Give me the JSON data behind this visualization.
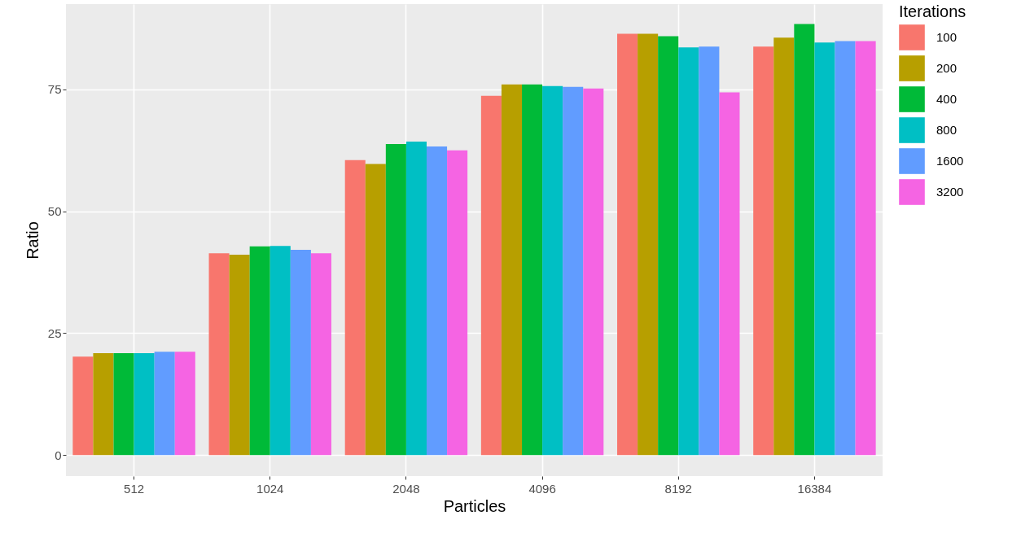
{
  "chart_data": {
    "type": "bar",
    "xlabel": "Particles",
    "ylabel": "Ratio",
    "legend_title": "Iterations",
    "legend": "right",
    "grid": true,
    "categories": [
      "512",
      "1024",
      "2048",
      "4096",
      "8192",
      "16384"
    ],
    "ylim": [
      -4.3,
      92.5
    ],
    "yticks": [
      0,
      25,
      50,
      75
    ],
    "series": [
      {
        "name": "100",
        "color": "#f8766d",
        "values": [
          20.2,
          41.4,
          60.5,
          73.7,
          86.4,
          83.8
        ]
      },
      {
        "name": "200",
        "color": "#b79f00",
        "values": [
          20.9,
          41.1,
          59.7,
          76.0,
          86.4,
          85.6
        ]
      },
      {
        "name": "400",
        "color": "#00ba38",
        "values": [
          20.9,
          42.8,
          63.8,
          76.0,
          85.9,
          88.4
        ]
      },
      {
        "name": "800",
        "color": "#00bfc4",
        "values": [
          20.9,
          42.9,
          64.3,
          75.7,
          83.6,
          84.6
        ]
      },
      {
        "name": "1600",
        "color": "#619cff",
        "values": [
          21.2,
          42.1,
          63.3,
          75.5,
          83.8,
          84.9
        ]
      },
      {
        "name": "3200",
        "color": "#f564e3",
        "values": [
          21.2,
          41.4,
          62.5,
          75.2,
          74.4,
          84.9
        ]
      }
    ]
  }
}
